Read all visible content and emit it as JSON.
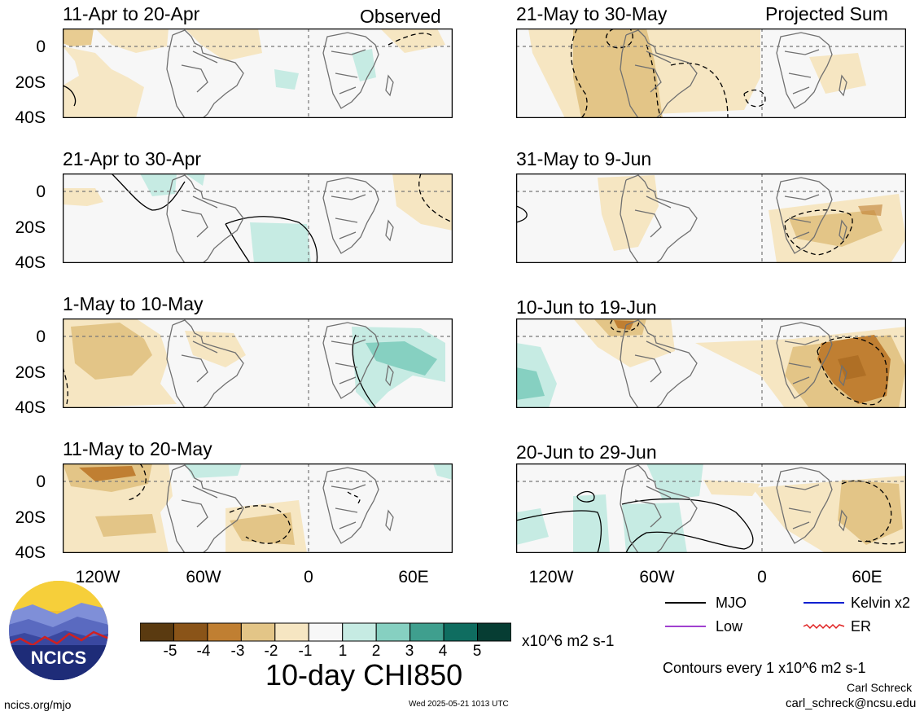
{
  "header": {
    "observed_label": "Observed",
    "projected_label": "Projected Sum"
  },
  "panels_left": [
    {
      "title": "11-Apr to 20-Apr"
    },
    {
      "title": "21-Apr to 30-Apr"
    },
    {
      "title": "1-May to 10-May"
    },
    {
      "title": "11-May to 20-May"
    }
  ],
  "panels_right": [
    {
      "title": "21-May to 30-May"
    },
    {
      "title": "31-May to 9-Jun"
    },
    {
      "title": "10-Jun to 19-Jun"
    },
    {
      "title": "20-Jun to 29-Jun"
    }
  ],
  "y_ticks": [
    "0",
    "20S",
    "40S"
  ],
  "x_ticks": [
    "120W",
    "60W",
    "0",
    "60E"
  ],
  "colorbar": {
    "ticks": [
      "-5",
      "-4",
      "-3",
      "-2",
      "-1",
      "1",
      "2",
      "3",
      "4",
      "5"
    ],
    "unit": "x10^6 m2 s-1",
    "colors": [
      "#5a3a10",
      "#8a5418",
      "#c07f32",
      "#e3c587",
      "#f6e6c2",
      "#f7f7f7",
      "#c6ebe3",
      "#86d0c1",
      "#3f9f8e",
      "#0f6d60",
      "#063d33"
    ]
  },
  "main_title": "10-day CHI850",
  "legend": {
    "items": [
      {
        "label": "MJO",
        "color": "#000000"
      },
      {
        "label": "Kelvin x2",
        "color": "#1020d0"
      },
      {
        "label": "Low",
        "color": "#a040d0"
      },
      {
        "label": "ER",
        "color": "#e02020"
      }
    ],
    "contours_note": "Contours every 1 x10^6 m2 s-1"
  },
  "footer": {
    "logo_text": "NCICS",
    "site": "ncics.org/mjo",
    "timestamp": "Wed 2025-05-21 1013 UTC",
    "author": "Carl Schreck",
    "email": "carl_schreck@ncsu.edu"
  }
}
